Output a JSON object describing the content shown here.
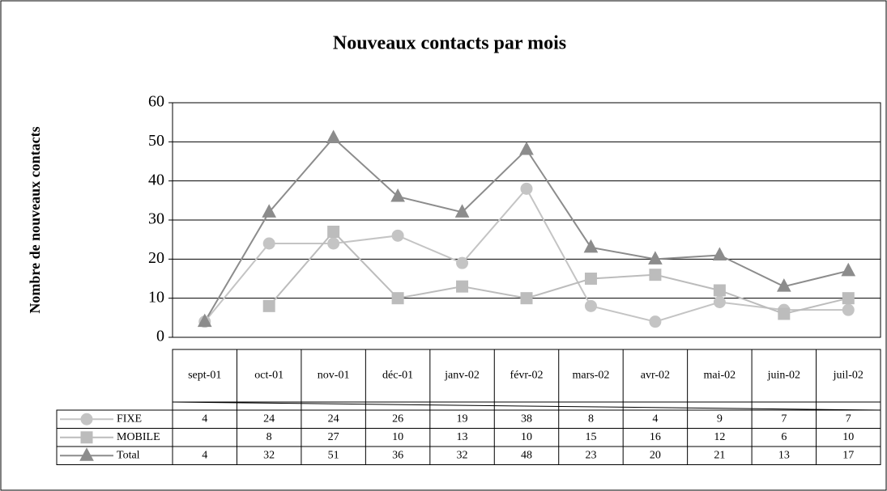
{
  "chart_data": {
    "type": "line",
    "title": "Nouveaux contacts par mois",
    "y_label": "Nombre de nouveaux contacts",
    "categories": [
      "sept-01",
      "oct-01",
      "nov-01",
      "déc-01",
      "janv-02",
      "févr-02",
      "mars-02",
      "avr-02",
      "mai-02",
      "juin-02",
      "juil-02"
    ],
    "series": [
      {
        "name": "FIXE",
        "color": "#c4c4c4",
        "marker": "circle",
        "values": [
          4,
          24,
          24,
          26,
          19,
          38,
          8,
          4,
          9,
          7,
          7
        ]
      },
      {
        "name": "MOBILE",
        "color": "#bcbcbc",
        "marker": "square",
        "values": [
          null,
          8,
          27,
          10,
          13,
          10,
          15,
          16,
          12,
          6,
          10
        ]
      },
      {
        "name": "Total",
        "color": "#8c8c8c",
        "marker": "triangle",
        "values": [
          4,
          32,
          51,
          36,
          32,
          48,
          23,
          20,
          21,
          13,
          17
        ]
      }
    ],
    "ylim": [
      0,
      60
    ],
    "yticks": [
      0,
      10,
      20,
      30,
      40,
      50,
      60
    ],
    "grid": true
  }
}
